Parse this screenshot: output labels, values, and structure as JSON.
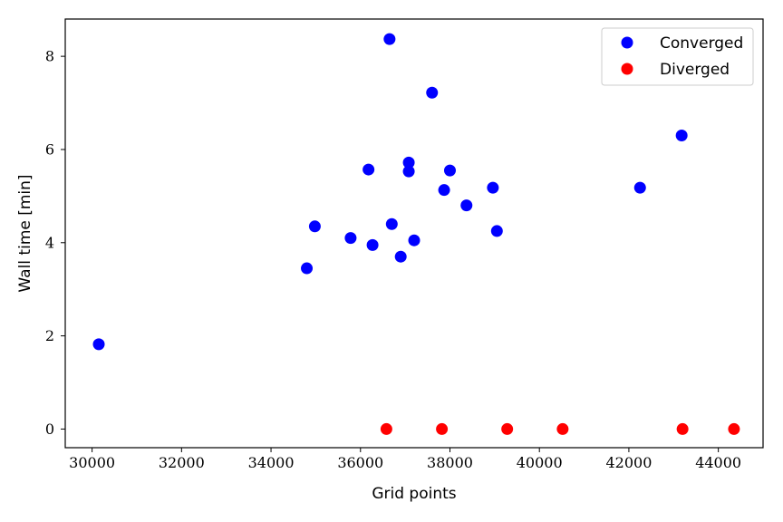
{
  "chart_data": {
    "type": "scatter",
    "xlabel": "Grid points",
    "ylabel": "Wall time [min]",
    "xlim": [
      29400,
      45000
    ],
    "ylim": [
      -0.4,
      8.8
    ],
    "xticks": [
      30000,
      32000,
      34000,
      36000,
      38000,
      40000,
      42000,
      44000
    ],
    "yticks": [
      0,
      2,
      4,
      6,
      8
    ],
    "grid": false,
    "legend_position": "top-right",
    "series": [
      {
        "name": "Converged",
        "color": "#0000ff",
        "points": [
          {
            "x": 30150,
            "y": 1.82
          },
          {
            "x": 34800,
            "y": 3.45
          },
          {
            "x": 34980,
            "y": 4.35
          },
          {
            "x": 35780,
            "y": 4.1
          },
          {
            "x": 36180,
            "y": 5.57
          },
          {
            "x": 36270,
            "y": 3.95
          },
          {
            "x": 36650,
            "y": 8.37
          },
          {
            "x": 36700,
            "y": 4.4
          },
          {
            "x": 36900,
            "y": 3.7
          },
          {
            "x": 37080,
            "y": 5.72
          },
          {
            "x": 37080,
            "y": 5.53
          },
          {
            "x": 37200,
            "y": 4.05
          },
          {
            "x": 37600,
            "y": 7.22
          },
          {
            "x": 37870,
            "y": 5.13
          },
          {
            "x": 38000,
            "y": 5.55
          },
          {
            "x": 38370,
            "y": 4.8
          },
          {
            "x": 38960,
            "y": 5.18
          },
          {
            "x": 39050,
            "y": 4.25
          },
          {
            "x": 42250,
            "y": 5.18
          },
          {
            "x": 43180,
            "y": 6.3
          }
        ]
      },
      {
        "name": "Diverged",
        "color": "#ff0000",
        "points": [
          {
            "x": 36580,
            "y": 0
          },
          {
            "x": 37820,
            "y": 0
          },
          {
            "x": 39280,
            "y": 0
          },
          {
            "x": 40520,
            "y": 0
          },
          {
            "x": 43200,
            "y": 0
          },
          {
            "x": 44350,
            "y": 0
          }
        ]
      }
    ]
  }
}
